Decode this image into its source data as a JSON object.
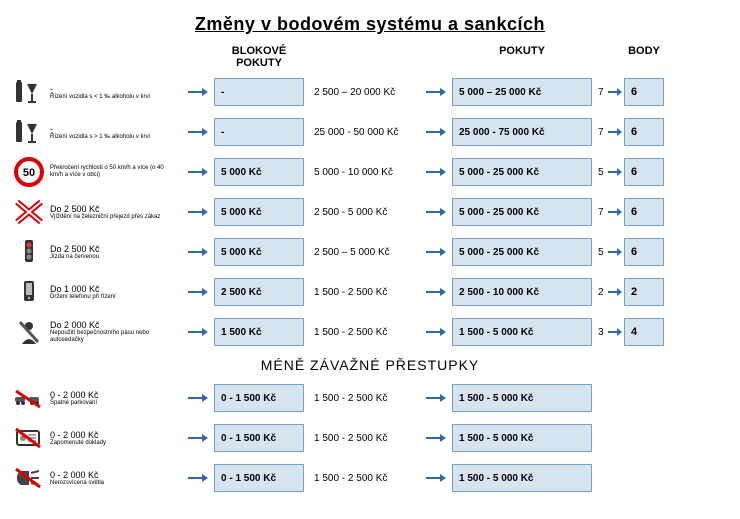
{
  "title": "Změny v bodovém systému a sankcích",
  "headers": {
    "blokove": "BLOKOVÉ POKUTY",
    "pokuty": "POKUTY",
    "body": "BODY"
  },
  "subheader": "MÉNĚ ZÁVAŽNÉ PŘESTUPKY",
  "colors": {
    "box_bg": "#d6e4ef",
    "box_border": "#7aa0bd",
    "arrow": "#2b6aa8",
    "text": "#000000"
  },
  "rows_main": [
    {
      "icon": "alcohol",
      "caption": "Řízení vozidla s < 1 ‰ alkoholu v krvi",
      "old_block": "-",
      "new_block": "-",
      "old_fine": "2 500 – 20 000 Kč",
      "new_fine": "5 000 – 25 000 Kč",
      "old_points": "7",
      "new_points": "6"
    },
    {
      "icon": "alcohol",
      "caption": "Řízení vozidla s > 1 ‰ alkoholu v krvi",
      "old_block": "-",
      "new_block": "-",
      "old_fine": "25 000 - 50 000 Kč",
      "new_fine": "25 000 - 75 000 Kč",
      "old_points": "7",
      "new_points": "6"
    },
    {
      "icon": "speed50",
      "caption": "Překročení rychlosti o 50 km/h a více (o 40 km/h a více v obci)",
      "old_block": "",
      "new_block": "5 000 Kč",
      "old_fine": "5 000 - 10 000 Kč",
      "new_fine": "5 000 - 25 000 Kč",
      "old_points": "5",
      "new_points": "6"
    },
    {
      "icon": "railcross",
      "caption": "Vjíždění na železniční přejezd přes zákaz",
      "old_block": "Do 2 500 Kč",
      "new_block": "5 000 Kč",
      "old_fine": "2 500 - 5 000 Kč",
      "new_fine": "5 000 - 25 000 Kč",
      "old_points": "7",
      "new_points": "6"
    },
    {
      "icon": "redlight",
      "caption": "Jízda na červenou",
      "old_block": "Do 2 500 Kč",
      "new_block": "5 000 Kč",
      "old_fine": "2 500 – 5 000 Kč",
      "new_fine": "5 000 - 25 000 Kč",
      "old_points": "5",
      "new_points": "6"
    },
    {
      "icon": "phone",
      "caption": "Držení telefonu při řízení",
      "old_block": "Do 1 000 Kč",
      "new_block": "2 500 Kč",
      "old_fine": "1 500 - 2 500 Kč",
      "new_fine": "2 500 - 10 000 Kč",
      "old_points": "2",
      "new_points": "2"
    },
    {
      "icon": "seatbelt",
      "caption": "Nepoužití bezpečnostního pásu nebo autosedačky",
      "old_block": "Do 2 000 Kč",
      "new_block": "1 500 Kč",
      "old_fine": "1 500 - 2 500 Kč",
      "new_fine": "1 500 - 5 000 Kč",
      "old_points": "3",
      "new_points": "4"
    }
  ],
  "rows_minor": [
    {
      "icon": "parking",
      "caption": "Špatné parkování",
      "old_block": "0 - 2 000 Kč",
      "new_block": "0 - 1 500 Kč",
      "old_fine": "1 500 - 2 500 Kč",
      "new_fine": "1 500 - 5 000 Kč"
    },
    {
      "icon": "docs",
      "caption": "Zapomenuté doklady",
      "old_block": "0 - 2 000 Kč",
      "new_block": "0 - 1 500 Kč",
      "old_fine": "1 500 - 2 500 Kč",
      "new_fine": "1 500 - 5 000 Kč"
    },
    {
      "icon": "lights",
      "caption": "Nerozsvícená světla",
      "old_block": "0 - 2 000 Kč",
      "new_block": "0 - 1 500 Kč",
      "old_fine": "1 500 - 2 500 Kč",
      "new_fine": "1 500 - 5 000 Kč"
    }
  ]
}
